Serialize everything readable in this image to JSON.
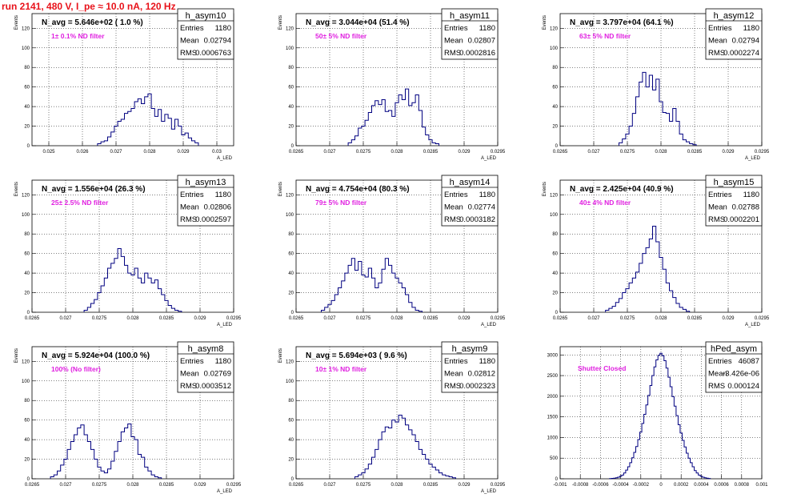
{
  "title": "run 2141,   480 V, I_pe ≈ 10.0 nA, 120 Hz",
  "colors": {
    "title": "#e8121a",
    "hist": "#000080",
    "filter_label": "#e020e0",
    "grid": "#000000"
  },
  "chart_data": [
    {
      "type": "histogram",
      "name": "h_asym10",
      "navg": "N_avg = 5.646e+02 ( 1.0 %)",
      "filter_label": "1± 0.1% ND filter",
      "stats": [
        [
          "Entries",
          "1180"
        ],
        [
          "Mean",
          "0.02794"
        ],
        [
          "RMS",
          "0.0006763"
        ]
      ],
      "xlabel": "A_LED",
      "ylabel": "Events",
      "xlim": [
        0.0245,
        0.0305
      ],
      "ylim": [
        0,
        135
      ],
      "xticks": [
        0.025,
        0.026,
        0.027,
        0.028,
        0.029,
        0.03
      ],
      "xtick_labels": [
        "0.025",
        "0.026",
        "0.027",
        "0.028",
        "0.029",
        "0.03"
      ],
      "yticks": [
        0,
        20,
        40,
        60,
        80,
        100,
        120
      ],
      "x": [
        0.0265,
        0.0266,
        0.0267,
        0.0268,
        0.0269,
        0.027,
        0.0271,
        0.0272,
        0.0273,
        0.0274,
        0.0275,
        0.0276,
        0.0277,
        0.0278,
        0.0279,
        0.028,
        0.0281,
        0.0282,
        0.0283,
        0.0284,
        0.0285,
        0.0286,
        0.0287,
        0.0288,
        0.0289,
        0.029,
        0.0291,
        0.0292,
        0.0293,
        0.0294
      ],
      "values": [
        2,
        4,
        5,
        9,
        14,
        20,
        25,
        27,
        33,
        35,
        38,
        45,
        48,
        43,
        50,
        53,
        38,
        30,
        37,
        25,
        32,
        28,
        17,
        27,
        20,
        11,
        13,
        8,
        5,
        3
      ]
    },
    {
      "type": "histogram",
      "name": "h_asym11",
      "navg": "N_avg = 3.044e+04 (51.4 %)",
      "filter_label": "50± 5% ND filter",
      "stats": [
        [
          "Entries",
          "1180"
        ],
        [
          "Mean",
          "0.02807"
        ],
        [
          "RMS",
          "0.0002816"
        ]
      ],
      "xlabel": "A_LED",
      "ylabel": "Events",
      "xlim": [
        0.0265,
        0.0295
      ],
      "ylim": [
        0,
        135
      ],
      "xticks": [
        0.0265,
        0.027,
        0.0275,
        0.028,
        0.0285,
        0.029,
        0.0295
      ],
      "xtick_labels": [
        "0.0265",
        "0.027",
        "0.0275",
        "0.028",
        "0.0285",
        "0.029",
        "0.0295"
      ],
      "yticks": [
        0,
        20,
        40,
        60,
        80,
        100,
        120
      ],
      "x": [
        0.0273,
        0.02735,
        0.0274,
        0.02745,
        0.0275,
        0.02755,
        0.0276,
        0.02765,
        0.0277,
        0.02775,
        0.0278,
        0.02785,
        0.0279,
        0.02795,
        0.028,
        0.02805,
        0.0281,
        0.02815,
        0.0282,
        0.02825,
        0.0283,
        0.02835,
        0.0284,
        0.02845,
        0.0285,
        0.02855,
        0.0286
      ],
      "values": [
        3,
        6,
        10,
        18,
        20,
        26,
        34,
        41,
        46,
        42,
        47,
        35,
        36,
        30,
        44,
        52,
        47,
        58,
        41,
        44,
        52,
        36,
        19,
        11,
        6,
        3,
        2
      ]
    },
    {
      "type": "histogram",
      "name": "h_asym12",
      "navg": "N_avg = 3.797e+04 (64.1 %)",
      "filter_label": "63± 5% ND filter",
      "stats": [
        [
          "Entries",
          "1180"
        ],
        [
          "Mean",
          "0.02794"
        ],
        [
          "RMS",
          "0.0002274"
        ]
      ],
      "xlabel": "A_LED",
      "ylabel": "Events",
      "xlim": [
        0.0265,
        0.0295
      ],
      "ylim": [
        0,
        135
      ],
      "xticks": [
        0.0265,
        0.027,
        0.0275,
        0.028,
        0.0285,
        0.029,
        0.0295
      ],
      "xtick_labels": [
        "0.0265",
        "0.027",
        "0.0275",
        "0.028",
        "0.0285",
        "0.029",
        "0.0295"
      ],
      "yticks": [
        0,
        20,
        40,
        60,
        80,
        100,
        120
      ],
      "x": [
        0.0274,
        0.02745,
        0.0275,
        0.02755,
        0.0276,
        0.02765,
        0.0277,
        0.02775,
        0.0278,
        0.02785,
        0.0279,
        0.02795,
        0.028,
        0.02805,
        0.0281,
        0.02815,
        0.0282,
        0.02825,
        0.0283,
        0.02835,
        0.0284,
        0.02845,
        0.0285
      ],
      "values": [
        3,
        7,
        12,
        20,
        33,
        50,
        65,
        75,
        60,
        72,
        57,
        68,
        45,
        34,
        33,
        25,
        38,
        25,
        12,
        6,
        4,
        2,
        1
      ]
    },
    {
      "type": "histogram",
      "name": "h_asym13",
      "navg": "N_avg = 1.556e+04 (26.3 %)",
      "filter_label": "25± 2.5% ND filter",
      "stats": [
        [
          "Entries",
          "1180"
        ],
        [
          "Mean",
          "0.02806"
        ],
        [
          "RMS",
          "0.0002597"
        ]
      ],
      "xlabel": "A_LED",
      "ylabel": "Events",
      "xlim": [
        0.0265,
        0.0295
      ],
      "ylim": [
        0,
        135
      ],
      "xticks": [
        0.0265,
        0.027,
        0.0275,
        0.028,
        0.0285,
        0.029,
        0.0295
      ],
      "xtick_labels": [
        "0.0265",
        "0.027",
        "0.0275",
        "0.028",
        "0.0285",
        "0.029",
        "0.0295"
      ],
      "yticks": [
        0,
        20,
        40,
        60,
        80,
        100,
        120
      ],
      "x": [
        0.0273,
        0.02735,
        0.0274,
        0.02745,
        0.0275,
        0.02755,
        0.0276,
        0.02765,
        0.0277,
        0.02775,
        0.0278,
        0.02785,
        0.0279,
        0.02795,
        0.028,
        0.02805,
        0.0281,
        0.02815,
        0.0282,
        0.02825,
        0.0283,
        0.02835,
        0.0284,
        0.02845,
        0.0285,
        0.02855,
        0.0286,
        0.02865,
        0.0287
      ],
      "values": [
        2,
        5,
        9,
        13,
        20,
        27,
        35,
        45,
        50,
        55,
        65,
        57,
        48,
        40,
        38,
        45,
        35,
        30,
        40,
        35,
        30,
        33,
        24,
        18,
        12,
        7,
        4,
        2,
        1
      ]
    },
    {
      "type": "histogram",
      "name": "h_asym14",
      "navg": "N_avg = 4.754e+04 (80.3 %)",
      "filter_label": "79± 5% ND filter",
      "stats": [
        [
          "Entries",
          "1180"
        ],
        [
          "Mean",
          "0.02774"
        ],
        [
          "RMS",
          "0.0003182"
        ]
      ],
      "xlabel": "A_LED",
      "ylabel": "Events",
      "xlim": [
        0.0265,
        0.0295
      ],
      "ylim": [
        0,
        135
      ],
      "xticks": [
        0.0265,
        0.027,
        0.0275,
        0.028,
        0.0285,
        0.029,
        0.0295
      ],
      "xtick_labels": [
        "0.0265",
        "0.027",
        "0.0275",
        "0.028",
        "0.0285",
        "0.029",
        "0.0295"
      ],
      "yticks": [
        0,
        20,
        40,
        60,
        80,
        100,
        120
      ],
      "x": [
        0.0269,
        0.02695,
        0.027,
        0.02705,
        0.0271,
        0.02715,
        0.0272,
        0.02725,
        0.0273,
        0.02735,
        0.0274,
        0.02745,
        0.0275,
        0.02755,
        0.0276,
        0.02765,
        0.0277,
        0.02775,
        0.0278,
        0.02785,
        0.0279,
        0.02795,
        0.028,
        0.02805,
        0.0281,
        0.02815,
        0.0282,
        0.02825,
        0.0283,
        0.02835
      ],
      "values": [
        2,
        5,
        8,
        12,
        18,
        25,
        32,
        40,
        48,
        55,
        43,
        52,
        38,
        36,
        45,
        35,
        25,
        30,
        44,
        55,
        48,
        40,
        35,
        30,
        25,
        18,
        10,
        5,
        2,
        1
      ]
    },
    {
      "type": "histogram",
      "name": "h_asym15",
      "navg": "N_avg = 2.425e+04 (40.9 %)",
      "filter_label": "40± 4% ND filter",
      "stats": [
        [
          "Entries",
          "1180"
        ],
        [
          "Mean",
          "0.02788"
        ],
        [
          "RMS",
          "0.0002201"
        ]
      ],
      "xlabel": "A_LED",
      "ylabel": "Events",
      "xlim": [
        0.0265,
        0.0295
      ],
      "ylim": [
        0,
        135
      ],
      "xticks": [
        0.0265,
        0.027,
        0.0275,
        0.028,
        0.0285,
        0.029,
        0.0295
      ],
      "xtick_labels": [
        "0.0265",
        "0.027",
        "0.0275",
        "0.028",
        "0.0285",
        "0.029",
        "0.0295"
      ],
      "yticks": [
        0,
        20,
        40,
        60,
        80,
        100,
        120
      ],
      "x": [
        0.0272,
        0.02725,
        0.0273,
        0.02735,
        0.0274,
        0.02745,
        0.0275,
        0.02755,
        0.0276,
        0.02765,
        0.0277,
        0.02775,
        0.0278,
        0.02785,
        0.0279,
        0.02795,
        0.028,
        0.02805,
        0.0281,
        0.02815,
        0.0282,
        0.02825,
        0.0283,
        0.02835,
        0.0284
      ],
      "values": [
        2,
        4,
        6,
        10,
        14,
        20,
        24,
        30,
        35,
        41,
        50,
        60,
        66,
        75,
        88,
        72,
        56,
        44,
        30,
        22,
        15,
        9,
        5,
        3,
        1
      ]
    },
    {
      "type": "histogram",
      "name": "h_asym8",
      "navg": "N_avg = 5.924e+04 (100.0 %)",
      "filter_label": "100% (No filter)",
      "stats": [
        [
          "Entries",
          "1180"
        ],
        [
          "Mean",
          "0.02769"
        ],
        [
          "RMS",
          "0.0003512"
        ]
      ],
      "xlabel": "A_LED",
      "ylabel": "Events",
      "xlim": [
        0.0265,
        0.0295
      ],
      "ylim": [
        0,
        135
      ],
      "xticks": [
        0.0265,
        0.027,
        0.0275,
        0.028,
        0.0285,
        0.029,
        0.0295
      ],
      "xtick_labels": [
        "0.0265",
        "0.027",
        "0.0275",
        "0.028",
        "0.0285",
        "0.029",
        "0.0295"
      ],
      "yticks": [
        0,
        20,
        40,
        60,
        80,
        100,
        120
      ],
      "x": [
        0.0268,
        0.02685,
        0.0269,
        0.02695,
        0.027,
        0.02705,
        0.0271,
        0.02715,
        0.0272,
        0.02725,
        0.0273,
        0.02735,
        0.0274,
        0.02745,
        0.0275,
        0.02755,
        0.0276,
        0.02765,
        0.0277,
        0.02775,
        0.0278,
        0.02785,
        0.0279,
        0.02795,
        0.028,
        0.02805,
        0.0281,
        0.02815,
        0.0282,
        0.02825,
        0.0283,
        0.02835,
        0.0284
      ],
      "values": [
        2,
        4,
        8,
        14,
        20,
        30,
        38,
        45,
        52,
        55,
        45,
        38,
        30,
        20,
        12,
        8,
        6,
        10,
        18,
        28,
        38,
        48,
        52,
        56,
        43,
        40,
        25,
        22,
        12,
        8,
        4,
        2,
        1
      ]
    },
    {
      "type": "histogram",
      "name": "h_asym9",
      "navg": "N_avg = 5.694e+03 ( 9.6 %)",
      "filter_label": "10± 1% ND filter",
      "stats": [
        [
          "Entries",
          "1180"
        ],
        [
          "Mean",
          "0.02812"
        ],
        [
          "RMS",
          "0.0002323"
        ]
      ],
      "xlabel": "A_LED",
      "ylabel": "Events",
      "xlim": [
        0.0265,
        0.0295
      ],
      "ylim": [
        0,
        135
      ],
      "xticks": [
        0.0265,
        0.027,
        0.0275,
        0.028,
        0.0285,
        0.029,
        0.0295
      ],
      "xtick_labels": [
        "0.0265",
        "0.027",
        "0.0275",
        "0.028",
        "0.0285",
        "0.029",
        "0.0295"
      ],
      "yticks": [
        0,
        20,
        40,
        60,
        80,
        100,
        120
      ],
      "x": [
        0.0274,
        0.02745,
        0.0275,
        0.02755,
        0.0276,
        0.02765,
        0.0277,
        0.02775,
        0.0278,
        0.02785,
        0.0279,
        0.02795,
        0.028,
        0.02805,
        0.0281,
        0.02815,
        0.0282,
        0.02825,
        0.0283,
        0.02835,
        0.0284,
        0.02845,
        0.0285,
        0.02855,
        0.0286,
        0.02865,
        0.0287,
        0.02875,
        0.0288,
        0.02885
      ],
      "values": [
        2,
        4,
        6,
        10,
        15,
        22,
        30,
        40,
        48,
        53,
        52,
        60,
        58,
        65,
        62,
        55,
        50,
        45,
        38,
        30,
        25,
        20,
        15,
        12,
        9,
        6,
        4,
        3,
        2,
        1
      ]
    },
    {
      "type": "histogram",
      "name": "hPed_asym",
      "navg": "",
      "filter_label": "Shutter Closed",
      "stats": [
        [
          "Entries",
          "46087"
        ],
        [
          "Mean",
          "-3.426e-06"
        ],
        [
          "RMS",
          "0.000124"
        ]
      ],
      "xlabel": "",
      "ylabel": "",
      "xlim": [
        -0.001,
        0.001
      ],
      "ylim": [
        0,
        3200
      ],
      "xticks": [
        -0.001,
        -0.0008,
        -0.0006,
        -0.0004,
        -0.0002,
        0,
        0.0002,
        0.0004,
        0.0006,
        0.0008,
        0.001
      ],
      "xtick_labels": [
        "-0.001",
        "-0.0008",
        "-0.0006",
        "-0.0004",
        "-0.0002",
        "0",
        "0.0002",
        "0.0004",
        "0.0006",
        "0.0008",
        "0.001"
      ],
      "yticks": [
        0,
        500,
        1000,
        1500,
        2000,
        2500,
        3000
      ],
      "x": [
        -0.0005,
        -0.00048,
        -0.00046,
        -0.00044,
        -0.00042,
        -0.0004,
        -0.00038,
        -0.00036,
        -0.00034,
        -0.00032,
        -0.0003,
        -0.00028,
        -0.00026,
        -0.00024,
        -0.00022,
        -0.0002,
        -0.00018,
        -0.00016,
        -0.00014,
        -0.00012,
        -0.0001,
        -8e-05,
        -6e-05,
        -4e-05,
        -2e-05,
        0,
        2e-05,
        4e-05,
        6e-05,
        8e-05,
        0.0001,
        0.00012,
        0.00014,
        0.00016,
        0.00018,
        0.0002,
        0.00022,
        0.00024,
        0.00026,
        0.00028,
        0.0003,
        0.00032,
        0.00034,
        0.00036,
        0.00038,
        0.0004,
        0.00042,
        0.00044,
        0.00046,
        0.00048
      ],
      "values": [
        5,
        10,
        15,
        25,
        40,
        60,
        90,
        140,
        210,
        290,
        390,
        510,
        640,
        780,
        950,
        1130,
        1340,
        1560,
        1790,
        2020,
        2260,
        2500,
        2710,
        2880,
        2990,
        3040,
        2980,
        2860,
        2680,
        2460,
        2230,
        1990,
        1760,
        1530,
        1310,
        1110,
        930,
        770,
        620,
        500,
        390,
        290,
        200,
        140,
        90,
        60,
        40,
        25,
        15,
        8
      ]
    }
  ]
}
